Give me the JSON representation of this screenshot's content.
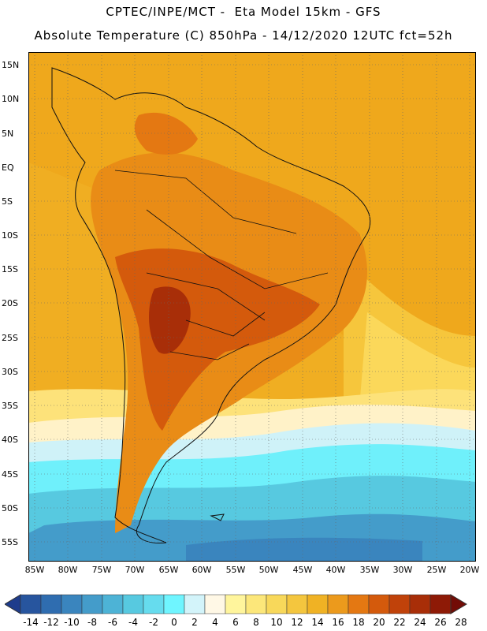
{
  "header": {
    "line1": "CPTEC/INPE/MCT -  Eta Model 15km - GFS",
    "line2": "Absolute Temperature (C) 850hPa - 14/12/2020 12UTC fct=52h"
  },
  "map": {
    "lat_labels": [
      "15N",
      "10N",
      "5N",
      "EQ",
      "5S",
      "10S",
      "15S",
      "20S",
      "25S",
      "30S",
      "35S",
      "40S",
      "45S",
      "50S",
      "55S"
    ],
    "lon_labels": [
      "85W",
      "80W",
      "75W",
      "70W",
      "65W",
      "60W",
      "55W",
      "50W",
      "45W",
      "40W",
      "35W",
      "30W",
      "25W",
      "20W"
    ]
  },
  "colorbar": {
    "labels": [
      "-14",
      "-12",
      "-10",
      "-8",
      "-6",
      "-4",
      "-2",
      "0",
      "2",
      "4",
      "6",
      "8",
      "10",
      "12",
      "14",
      "16",
      "18",
      "20",
      "22",
      "24",
      "26",
      "28"
    ],
    "colors": [
      "#1e3c8c",
      "#27559e",
      "#2f6db0",
      "#3a85be",
      "#449cca",
      "#4db3d6",
      "#57c9e0",
      "#66dcee",
      "#6ff5ff",
      "#d3f4fa",
      "#fff8e6",
      "#fff59c",
      "#fce77a",
      "#f8d85a",
      "#f4c63e",
      "#f0b224",
      "#ec9a1c",
      "#e47812",
      "#d45a0c",
      "#c0420a",
      "#a82e08",
      "#8e1a06",
      "#720c06"
    ]
  }
}
